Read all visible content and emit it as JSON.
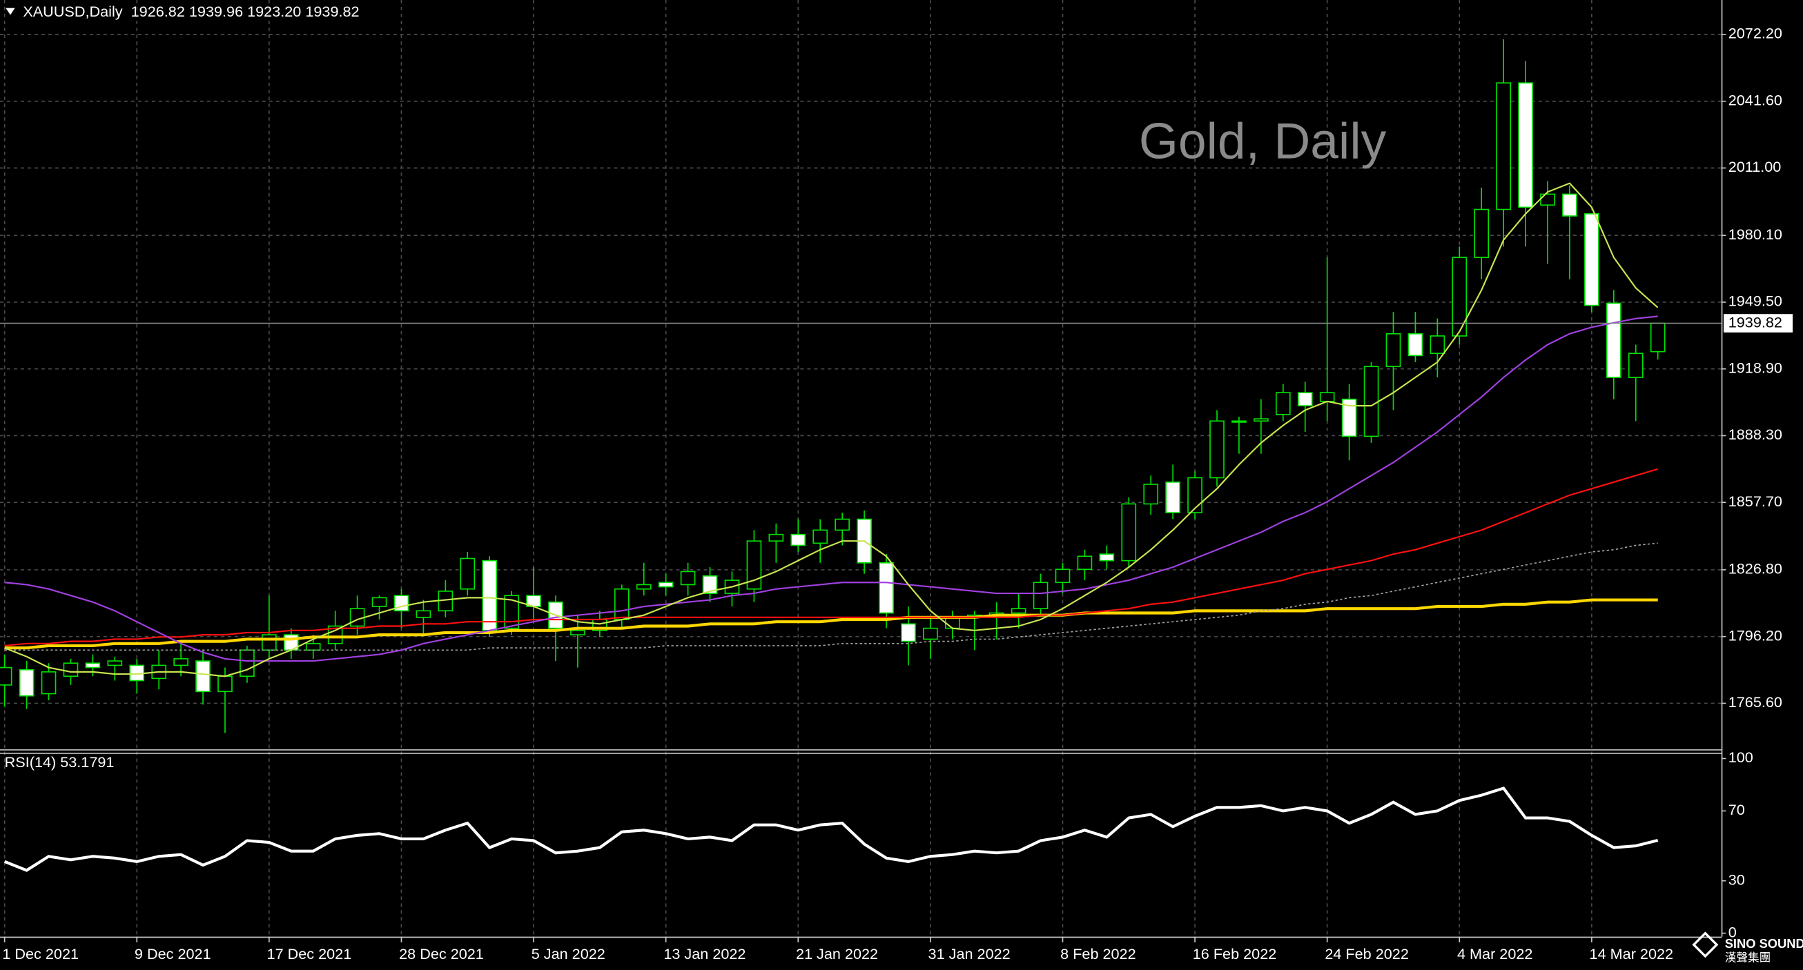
{
  "chart_data": [
    {
      "type": "candlestick",
      "title": "Gold, Daily",
      "header": "XAUUSD,Daily  1926.82 1939.96 1923.20 1939.82",
      "categories": [
        "1 Dec 2021",
        null,
        null,
        null,
        null,
        null,
        "9 Dec 2021",
        null,
        null,
        null,
        null,
        null,
        "17 Dec 2021",
        null,
        null,
        null,
        null,
        null,
        "28 Dec 2021",
        null,
        null,
        null,
        null,
        null,
        "5 Jan 2022",
        null,
        null,
        null,
        null,
        null,
        "13 Jan 2022",
        null,
        null,
        null,
        null,
        null,
        "21 Jan 2022",
        null,
        null,
        null,
        null,
        null,
        "31 Jan 2022",
        null,
        null,
        null,
        null,
        null,
        "8 Feb 2022",
        null,
        null,
        null,
        null,
        null,
        "16 Feb 2022",
        null,
        null,
        null,
        null,
        null,
        "24 Feb 2022",
        null,
        null,
        null,
        null,
        null,
        "4 Mar 2022",
        null,
        null,
        null,
        null,
        null,
        "14 Mar 2022",
        null,
        null,
        null
      ],
      "open": [
        1774,
        1781,
        1770,
        1778,
        1784,
        1783,
        1783,
        1777,
        1783,
        1785,
        1771,
        1778,
        1790,
        1797,
        1790,
        1793,
        1801,
        1810,
        1815,
        1805,
        1808,
        1818,
        1831,
        1800,
        1815,
        1812,
        1797,
        1799,
        1804,
        1818,
        1821,
        1820,
        1824,
        1816,
        1818,
        1840,
        1843,
        1839,
        1845,
        1850,
        1830,
        1802,
        1795,
        1800,
        1805,
        1806,
        1807,
        1809,
        1821,
        1827,
        1834,
        1831,
        1857,
        1867,
        1853,
        1869,
        1895,
        1895,
        1898,
        1908,
        1904,
        1905,
        1888,
        1920,
        1935,
        1926,
        1934,
        1970,
        1992,
        2050,
        1994,
        1999,
        1990,
        1949,
        1915,
        1926.82
      ],
      "high": [
        1788,
        1785,
        1784,
        1786,
        1788,
        1787,
        1786,
        1790,
        1794,
        1790,
        1782,
        1792,
        1815,
        1800,
        1797,
        1808,
        1815,
        1815,
        1818,
        1813,
        1822,
        1835,
        1833,
        1817,
        1828,
        1815,
        1806,
        1808,
        1820,
        1830,
        1825,
        1830,
        1828,
        1826,
        1845,
        1848,
        1850,
        1850,
        1853,
        1854,
        1834,
        1810,
        1805,
        1808,
        1808,
        1812,
        1816,
        1825,
        1830,
        1836,
        1838,
        1860,
        1870,
        1875,
        1872,
        1900,
        1897,
        1905,
        1912,
        1913,
        1970,
        1912,
        1922,
        1945,
        1945,
        1942,
        1975,
        2002,
        2070,
        2060,
        2005,
        2003,
        1990,
        1955,
        1930,
        1939.96
      ],
      "low": [
        1764,
        1763,
        1767,
        1774,
        1778,
        1776,
        1770,
        1772,
        1778,
        1765,
        1752,
        1775,
        1786,
        1786,
        1786,
        1790,
        1797,
        1804,
        1800,
        1797,
        1805,
        1815,
        1796,
        1797,
        1803,
        1785,
        1782,
        1796,
        1800,
        1815,
        1815,
        1815,
        1812,
        1810,
        1812,
        1830,
        1835,
        1830,
        1838,
        1825,
        1800,
        1783,
        1786,
        1795,
        1790,
        1795,
        1800,
        1806,
        1816,
        1822,
        1827,
        1828,
        1852,
        1850,
        1850,
        1865,
        1880,
        1880,
        1895,
        1890,
        1895,
        1877,
        1885,
        1900,
        1922,
        1915,
        1930,
        1960,
        1975,
        1975,
        1967,
        1960,
        1945,
        1905,
        1895,
        1923.2
      ],
      "close": [
        1782,
        1769,
        1780,
        1784,
        1782,
        1785,
        1776,
        1783,
        1786,
        1771,
        1778,
        1790,
        1797,
        1790,
        1793,
        1801,
        1809,
        1814,
        1808,
        1808,
        1817,
        1832,
        1799,
        1815,
        1810,
        1800,
        1799,
        1804,
        1818,
        1820,
        1819,
        1826,
        1816,
        1822,
        1840,
        1843,
        1838,
        1845,
        1850,
        1830,
        1807,
        1794,
        1800,
        1805,
        1806,
        1807,
        1809,
        1821,
        1827,
        1833,
        1831,
        1857,
        1866,
        1853,
        1869,
        1895,
        1895,
        1896,
        1908,
        1902,
        1908,
        1888,
        1920,
        1935,
        1925,
        1934,
        1970,
        1992,
        2050,
        1993,
        1999,
        1989,
        1948,
        1915,
        1926,
        1939.82
      ],
      "up_color": "#000000",
      "down_color": "#ffffff",
      "wick_color": "#00e000",
      "series": [
        {
          "color": "#ffd700",
          "width": 2.5,
          "dashed": false,
          "values": [
            1791,
            1791,
            1792,
            1792,
            1792,
            1793,
            1793,
            1793,
            1794,
            1794,
            1794,
            1795,
            1795,
            1795,
            1796,
            1796,
            1796,
            1797,
            1797,
            1797,
            1798,
            1798,
            1798,
            1799,
            1799,
            1799,
            1800,
            1800,
            1800,
            1801,
            1801,
            1801,
            1802,
            1802,
            1802,
            1803,
            1803,
            1803,
            1804,
            1804,
            1804,
            1805,
            1805,
            1805,
            1805,
            1806,
            1806,
            1806,
            1806,
            1807,
            1807,
            1807,
            1807,
            1807,
            1808,
            1808,
            1808,
            1808,
            1808,
            1808,
            1809,
            1809,
            1809,
            1809,
            1809,
            1810,
            1810,
            1810,
            1811,
            1811,
            1812,
            1812,
            1813,
            1813,
            1813,
            1813
          ]
        },
        {
          "color": "#a0a0a0",
          "width": 1,
          "dashed": true,
          "values": [
            1790,
            1790,
            1790,
            1790,
            1790,
            1790,
            1790,
            1790,
            1790,
            1790,
            1790,
            1790,
            1790,
            1790,
            1790,
            1790,
            1790,
            1790,
            1790,
            1790,
            1790,
            1790,
            1791,
            1791,
            1791,
            1791,
            1791,
            1791,
            1791,
            1791,
            1792,
            1792,
            1792,
            1792,
            1792,
            1792,
            1792,
            1792,
            1793,
            1793,
            1793,
            1793,
            1794,
            1794,
            1795,
            1795,
            1796,
            1797,
            1798,
            1799,
            1800,
            1801,
            1802,
            1803,
            1804,
            1805,
            1806,
            1808,
            1809,
            1811,
            1812,
            1814,
            1815,
            1817,
            1819,
            1821,
            1823,
            1825,
            1827,
            1829,
            1831,
            1833,
            1835,
            1836,
            1838,
            1839
          ]
        },
        {
          "color": "#ff1010",
          "width": 1.3,
          "dashed": false,
          "values": [
            1792,
            1793,
            1793,
            1794,
            1794,
            1795,
            1795,
            1796,
            1796,
            1797,
            1797,
            1798,
            1798,
            1799,
            1799,
            1800,
            1800,
            1801,
            1801,
            1802,
            1802,
            1803,
            1803,
            1803,
            1804,
            1804,
            1804,
            1804,
            1805,
            1805,
            1805,
            1805,
            1805,
            1805,
            1805,
            1805,
            1805,
            1805,
            1805,
            1805,
            1805,
            1805,
            1805,
            1805,
            1805,
            1805,
            1805,
            1806,
            1806,
            1807,
            1808,
            1809,
            1811,
            1812,
            1814,
            1816,
            1818,
            1820,
            1822,
            1825,
            1827,
            1829,
            1831,
            1834,
            1836,
            1839,
            1842,
            1845,
            1849,
            1853,
            1857,
            1861,
            1864,
            1867,
            1870,
            1873
          ]
        },
        {
          "color": "#a040e0",
          "width": 1.3,
          "dashed": false,
          "values": [
            1821,
            1820,
            1818,
            1815,
            1812,
            1808,
            1803,
            1798,
            1793,
            1789,
            1786,
            1785,
            1785,
            1785,
            1785,
            1786,
            1787,
            1788,
            1790,
            1793,
            1795,
            1797,
            1799,
            1801,
            1803,
            1805,
            1806,
            1807,
            1808,
            1810,
            1811,
            1812,
            1813,
            1815,
            1816,
            1818,
            1819,
            1820,
            1821,
            1821,
            1821,
            1820,
            1819,
            1818,
            1817,
            1816,
            1816,
            1816,
            1817,
            1818,
            1820,
            1822,
            1825,
            1828,
            1832,
            1836,
            1840,
            1844,
            1849,
            1853,
            1858,
            1864,
            1870,
            1876,
            1883,
            1890,
            1898,
            1906,
            1915,
            1923,
            1930,
            1935,
            1938,
            1940,
            1942,
            1943
          ]
        },
        {
          "color": "#c8e650",
          "width": 1.3,
          "dashed": false,
          "values": [
            1791,
            1787,
            1782,
            1780,
            1780,
            1779,
            1779,
            1780,
            1780,
            1779,
            1778,
            1781,
            1786,
            1790,
            1795,
            1799,
            1804,
            1807,
            1810,
            1812,
            1813,
            1814,
            1814,
            1813,
            1810,
            1806,
            1803,
            1802,
            1804,
            1806,
            1810,
            1814,
            1817,
            1819,
            1822,
            1826,
            1831,
            1836,
            1840,
            1840,
            1833,
            1820,
            1808,
            1800,
            1799,
            1800,
            1801,
            1804,
            1809,
            1815,
            1821,
            1828,
            1836,
            1845,
            1855,
            1864,
            1875,
            1885,
            1893,
            1900,
            1904,
            1902,
            1902,
            1908,
            1915,
            1922,
            1936,
            1955,
            1978,
            1990,
            2000,
            2004,
            1993,
            1970,
            1956,
            1947
          ]
        }
      ],
      "price_line": {
        "value": 1939.82,
        "label": "1939.82"
      },
      "ylim": [
        1744.5,
        2088.0
      ],
      "yticks": [
        {
          "value": 2072.2,
          "label": "2072.20"
        },
        {
          "value": 2041.6,
          "label": "2041.60"
        },
        {
          "value": 2011,
          "label": "2011.00"
        },
        {
          "value": 1980.1,
          "label": "1980.10"
        },
        {
          "value": 1949.5,
          "label": "1949.50"
        },
        {
          "value": 1918.9,
          "label": "1918.90"
        },
        {
          "value": 1888.3,
          "label": "1888.30"
        },
        {
          "value": 1857.7,
          "label": "1857.70"
        },
        {
          "value": 1826.8,
          "label": "1826.80"
        },
        {
          "value": 1796.2,
          "label": "1796.20"
        },
        {
          "value": 1765.6,
          "label": "1765.60"
        }
      ],
      "grid": true,
      "logo": "SINO SOUND",
      "logo_sub": "漢聲集團"
    },
    {
      "type": "line",
      "title": "RSI(14) 53.1791",
      "color": "#ffffff",
      "values": [
        41,
        36,
        44,
        42,
        44,
        43,
        41,
        44,
        45,
        39,
        44,
        53,
        52,
        47,
        47,
        54,
        56,
        57,
        54,
        54,
        59,
        63,
        49,
        54,
        53,
        46,
        47,
        49,
        58,
        59,
        57,
        54,
        55,
        53,
        62,
        62,
        59,
        62,
        63,
        51,
        43,
        41,
        44,
        45,
        47,
        46,
        47,
        53,
        55,
        59,
        55,
        66,
        68,
        61,
        67,
        72,
        72,
        73,
        70,
        72,
        70,
        63,
        68,
        75,
        68,
        70,
        76,
        79,
        83,
        66,
        66,
        64,
        56,
        49,
        50,
        53.1791
      ],
      "ylim": [
        0,
        100
      ],
      "yticks": [
        100,
        70,
        30,
        0
      ]
    }
  ]
}
